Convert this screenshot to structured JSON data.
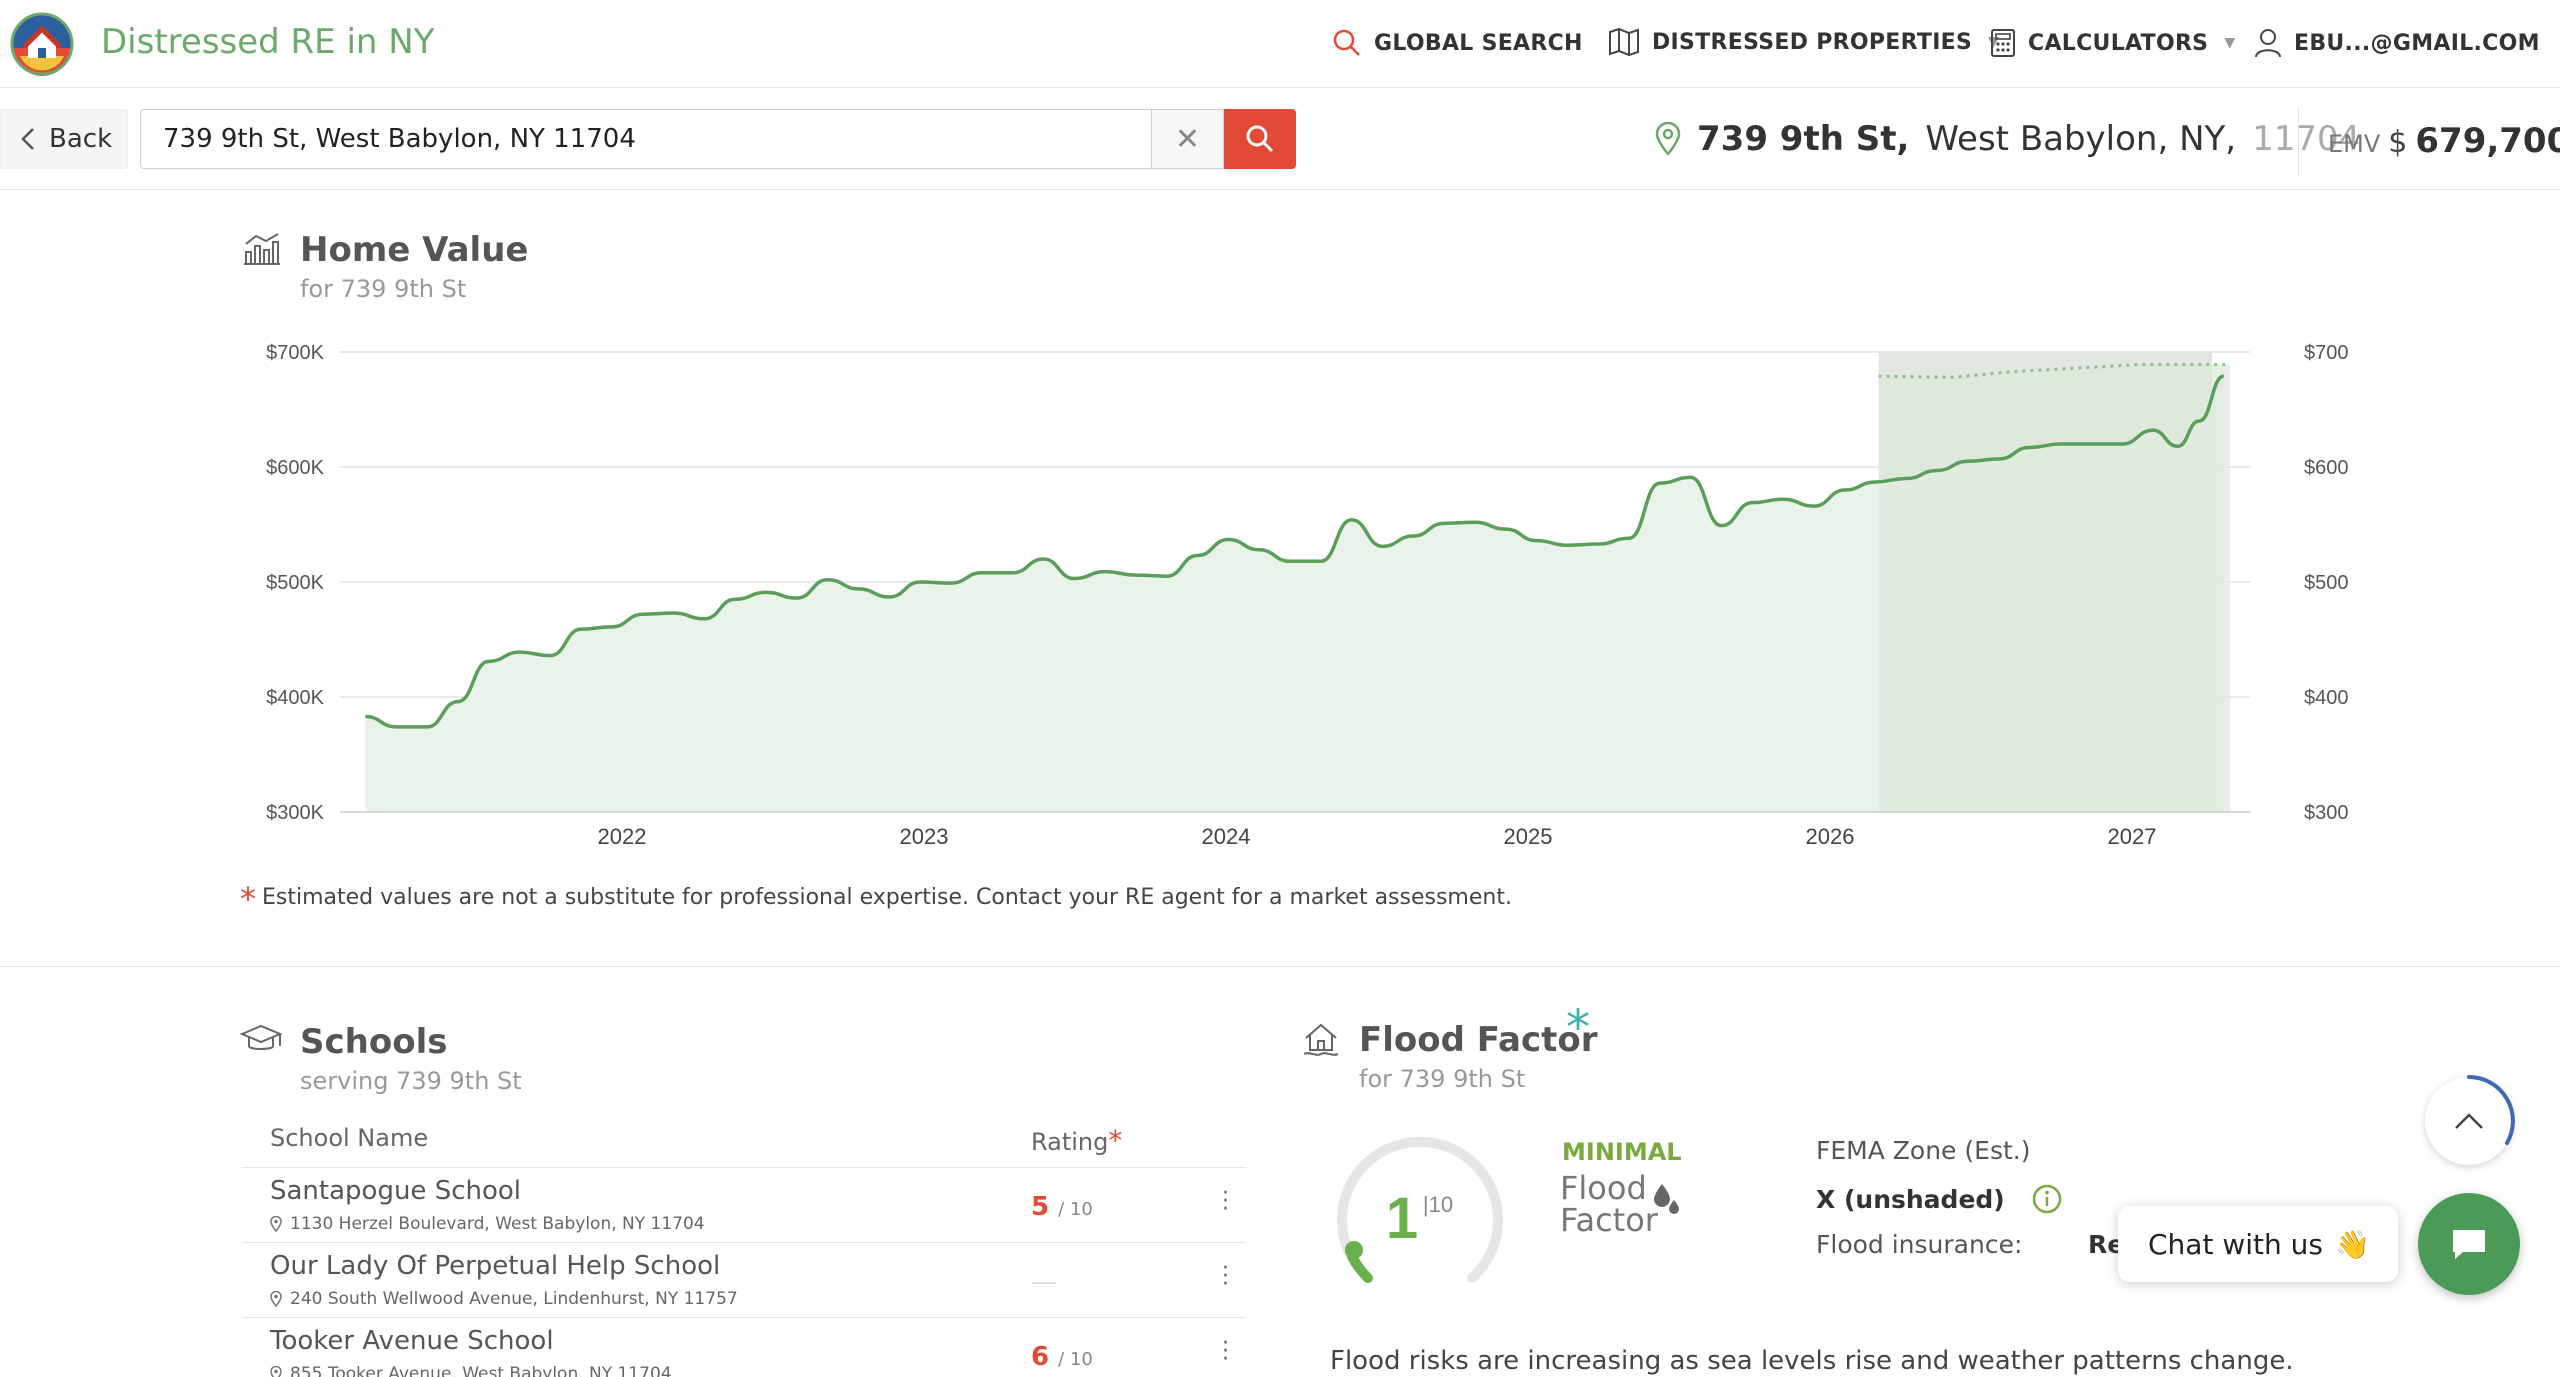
{
  "brand": {
    "name": "Distressed RE in NY"
  },
  "nav": {
    "global_search": "GLOBAL SEARCH",
    "distressed_properties": "DISTRESSED PROPERTIES",
    "calculators": "CALCULATORS",
    "account": "EBU...@GMAIL.COM"
  },
  "search": {
    "back_label": "Back",
    "value": "739 9th St, West Babylon, NY 11704",
    "clear_glyph": "✕"
  },
  "property": {
    "street": "739 9th St,",
    "city_state": "West Babylon, NY,",
    "zip_partial": "11704",
    "emv_label": "EMV",
    "emv_currency": "$",
    "emv_value": "679,700"
  },
  "home_value": {
    "title": "Home Value",
    "subtitle": "for 739 9th St",
    "disclaimer_star": "*",
    "disclaimer": "Estimated values are not a substitute for professional expertise. Contact your RE agent for a market assessment."
  },
  "chart_data": {
    "type": "line",
    "title": "Home Value",
    "y_ticks": [
      "$700K",
      "$600K",
      "$500K",
      "$400K",
      "$300K"
    ],
    "x_ticks": [
      "2022",
      "2023",
      "2024",
      "2025",
      "2026",
      "2027"
    ],
    "ylim": [
      300,
      700
    ],
    "xlim": [
      2021.1,
      2027.2
    ],
    "forecast_start": 2026.06,
    "series": [
      {
        "values_k": [
          [
            2021.15,
            383
          ],
          [
            2021.25,
            374
          ],
          [
            2021.35,
            374
          ],
          [
            2021.45,
            396
          ],
          [
            2021.55,
            431
          ],
          [
            2021.65,
            439
          ],
          [
            2021.75,
            436
          ],
          [
            2021.85,
            459
          ],
          [
            2021.95,
            461
          ],
          [
            2022.05,
            472
          ],
          [
            2022.15,
            473
          ],
          [
            2022.25,
            468
          ],
          [
            2022.35,
            485
          ],
          [
            2022.45,
            491
          ],
          [
            2022.55,
            486
          ],
          [
            2022.65,
            502
          ],
          [
            2022.75,
            494
          ],
          [
            2022.85,
            487
          ],
          [
            2022.95,
            500
          ],
          [
            2023.05,
            499
          ],
          [
            2023.15,
            508
          ],
          [
            2023.25,
            508
          ],
          [
            2023.35,
            520
          ],
          [
            2023.45,
            503
          ],
          [
            2023.55,
            509
          ],
          [
            2023.65,
            506
          ],
          [
            2023.75,
            505
          ],
          [
            2023.85,
            523
          ],
          [
            2023.95,
            537
          ],
          [
            2024.05,
            528
          ],
          [
            2024.15,
            518
          ],
          [
            2024.25,
            518
          ],
          [
            2024.35,
            554
          ],
          [
            2024.45,
            531
          ],
          [
            2024.55,
            540
          ],
          [
            2024.65,
            551
          ],
          [
            2024.75,
            552
          ],
          [
            2024.85,
            546
          ],
          [
            2024.95,
            536
          ],
          [
            2025.05,
            532
          ],
          [
            2025.15,
            533
          ],
          [
            2025.25,
            538
          ],
          [
            2025.35,
            586
          ],
          [
            2025.45,
            591
          ],
          [
            2025.55,
            549
          ],
          [
            2025.65,
            569
          ],
          [
            2025.75,
            572
          ],
          [
            2025.85,
            566
          ],
          [
            2025.95,
            580
          ],
          [
            2026.05,
            587
          ],
          [
            2026.15,
            590
          ],
          [
            2026.25,
            597
          ],
          [
            2026.35,
            605
          ],
          [
            2026.45,
            607
          ],
          [
            2026.55,
            617
          ],
          [
            2026.65,
            620
          ],
          [
            2026.75,
            620
          ],
          [
            2026.85,
            620
          ],
          [
            2026.95,
            632
          ],
          [
            2027.03,
            618
          ],
          [
            2027.1,
            640
          ],
          [
            2027.18,
            679
          ]
        ]
      }
    ],
    "forecast_values_k": [
      [
        2026.06,
        679
      ],
      [
        2026.3,
        678
      ],
      [
        2026.5,
        683
      ],
      [
        2026.7,
        686
      ],
      [
        2026.9,
        689
      ],
      [
        2027.2,
        689
      ]
    ]
  },
  "schools": {
    "title": "Schools",
    "subtitle": "serving 739 9th St",
    "col_name": "School Name",
    "col_rating": "Rating",
    "rating_star": "*",
    "rows": [
      {
        "name": "Santapogue School",
        "address": "1130 Herzel Boulevard, West Babylon, NY 11704",
        "rating": "5",
        "of": "/ 10"
      },
      {
        "name": "Our Lady Of Perpetual Help School",
        "address": "240 South Wellwood Avenue, Lindenhurst, NY 11757",
        "rating": "—",
        "of": ""
      },
      {
        "name": "Tooker Avenue School",
        "address": "855 Tooker Avenue, West Babylon, NY 11704",
        "rating": "6",
        "of": "/ 10"
      }
    ]
  },
  "flood": {
    "title": "Flood Factor",
    "title_star": "*",
    "subtitle": "for 739 9th St",
    "score": "1",
    "score_max": "|10",
    "level": "MINIMAL",
    "brand_line1": "Flood",
    "brand_line2": "Factor",
    "fema_label": "FEMA Zone (Est.)",
    "fema_value": "X (unshaded)",
    "insurance_label": "Flood insurance:",
    "insurance_value": "Re",
    "description": "Flood risks are increasing as sea levels rise and weather patterns change."
  },
  "chat": {
    "label": "Chat with us",
    "emoji": "👋"
  },
  "colors": {
    "accent_red": "#e14b36",
    "brand_green": "#6aa96a",
    "chart_line": "#5a9e5a",
    "chart_fill": "#eaf3ea",
    "forecast_fill": "#e2e8e1",
    "chat_green": "#4c9a57"
  }
}
